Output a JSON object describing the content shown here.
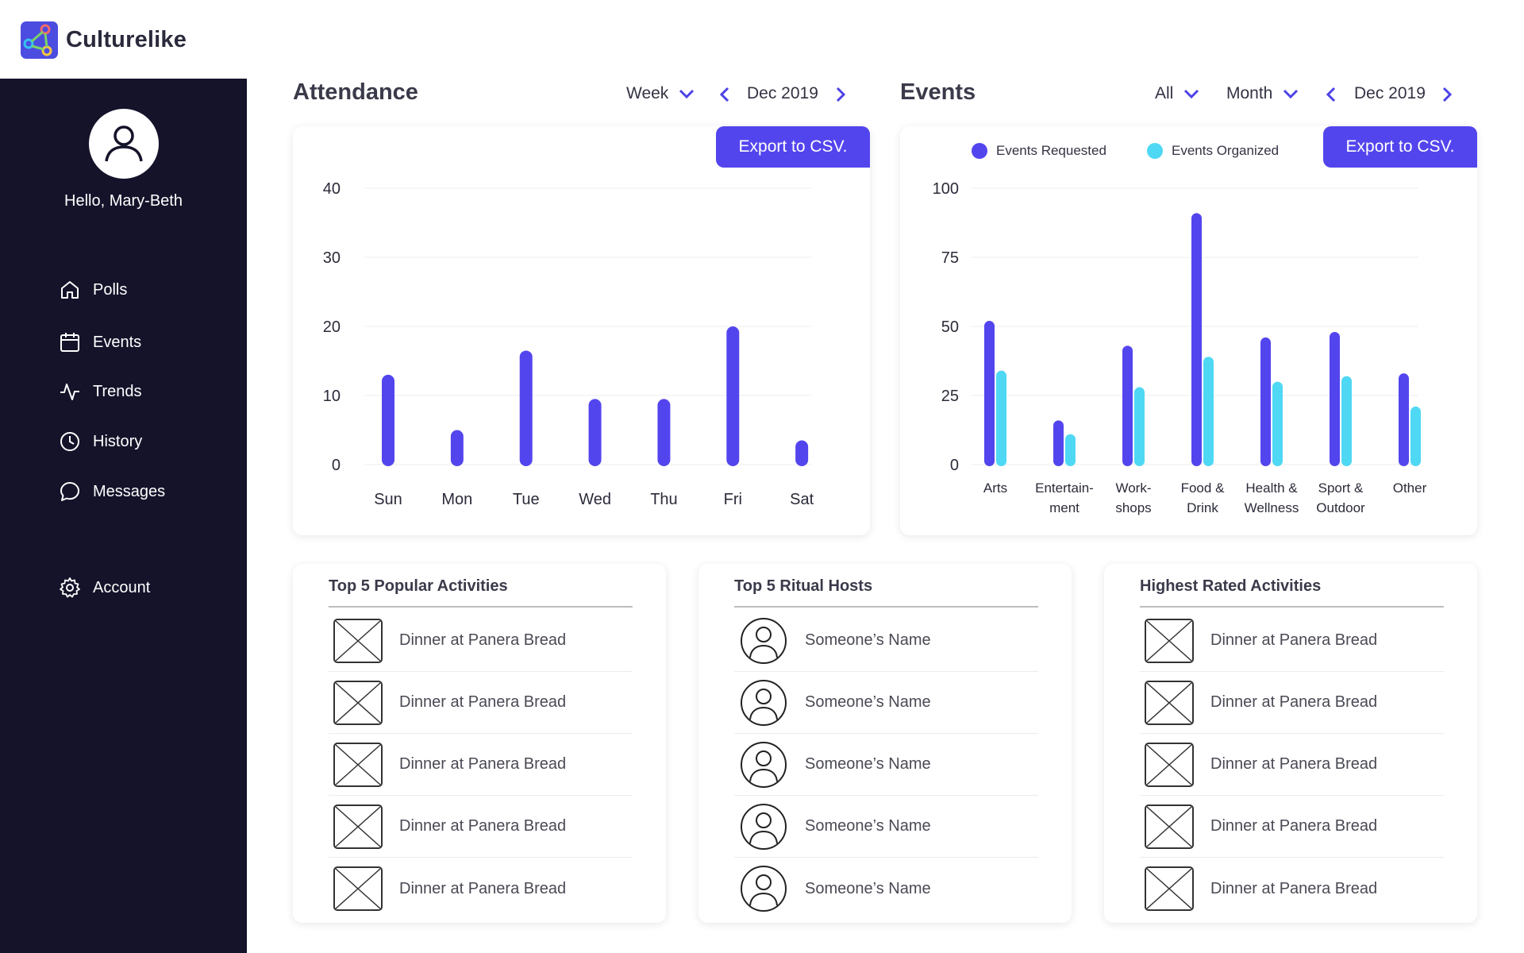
{
  "app": {
    "name": "Culturelike"
  },
  "colors": {
    "accent": "#5345ee",
    "secondary": "#4fd8f4",
    "sidebar_bg": "#14132a"
  },
  "sidebar": {
    "greeting": "Hello, Mary-Beth",
    "items": [
      {
        "label": "Polls",
        "icon": "home-icon"
      },
      {
        "label": "Events",
        "icon": "calendar-icon"
      },
      {
        "label": "Trends",
        "icon": "activity-icon"
      },
      {
        "label": "History",
        "icon": "clock-icon"
      },
      {
        "label": "Messages",
        "icon": "message-icon"
      }
    ],
    "account": {
      "label": "Account",
      "icon": "gear-icon"
    }
  },
  "attendance": {
    "title": "Attendance",
    "period": "Week",
    "date": "Dec 2019",
    "export_label": "Export to CSV."
  },
  "events": {
    "title": "Events",
    "filter": "All",
    "period": "Month",
    "date": "Dec 2019",
    "export_label": "Export to CSV."
  },
  "chart_data": [
    {
      "type": "bar",
      "title": "Attendance",
      "categories": [
        "Sun",
        "Mon",
        "Tue",
        "Wed",
        "Thu",
        "Fri",
        "Sat"
      ],
      "values": [
        13,
        5,
        16.5,
        9.5,
        9.5,
        20,
        3.5
      ],
      "yticks": [
        0,
        10,
        20,
        30,
        40
      ],
      "ylim": [
        0,
        40
      ],
      "grid": true,
      "color": "#5345ee"
    },
    {
      "type": "bar",
      "title": "Events",
      "categories": [
        "Arts",
        "Entertain-\nment",
        "Work-\nshops",
        "Food &\nDrink",
        "Health &\nWellness",
        "Sport &\nOutdoor",
        "Other"
      ],
      "series": [
        {
          "name": "Events Requested",
          "color": "#5345ee",
          "values": [
            52,
            16,
            43,
            91,
            46,
            48,
            33
          ]
        },
        {
          "name": "Events Organized",
          "color": "#4fd8f4",
          "values": [
            34,
            11,
            28,
            39,
            30,
            32,
            21
          ]
        }
      ],
      "yticks": [
        0,
        25,
        50,
        75,
        100
      ],
      "ylim": [
        0,
        100
      ],
      "grid": true,
      "legend": "top-left"
    }
  ],
  "lists": {
    "popular": {
      "title": "Top 5 Popular Activities",
      "items": [
        "Dinner at Panera Bread",
        "Dinner at Panera Bread",
        "Dinner at Panera Bread",
        "Dinner at Panera Bread",
        "Dinner at Panera Bread"
      ]
    },
    "hosts": {
      "title": "Top 5 Ritual Hosts",
      "items": [
        "Someone’s Name",
        "Someone’s Name",
        "Someone’s Name",
        "Someone’s Name",
        "Someone’s Name"
      ]
    },
    "rated": {
      "title": "Highest Rated Activities",
      "items": [
        "Dinner at Panera Bread",
        "Dinner at Panera Bread",
        "Dinner at Panera Bread",
        "Dinner at Panera Bread",
        "Dinner at Panera Bread"
      ]
    }
  }
}
